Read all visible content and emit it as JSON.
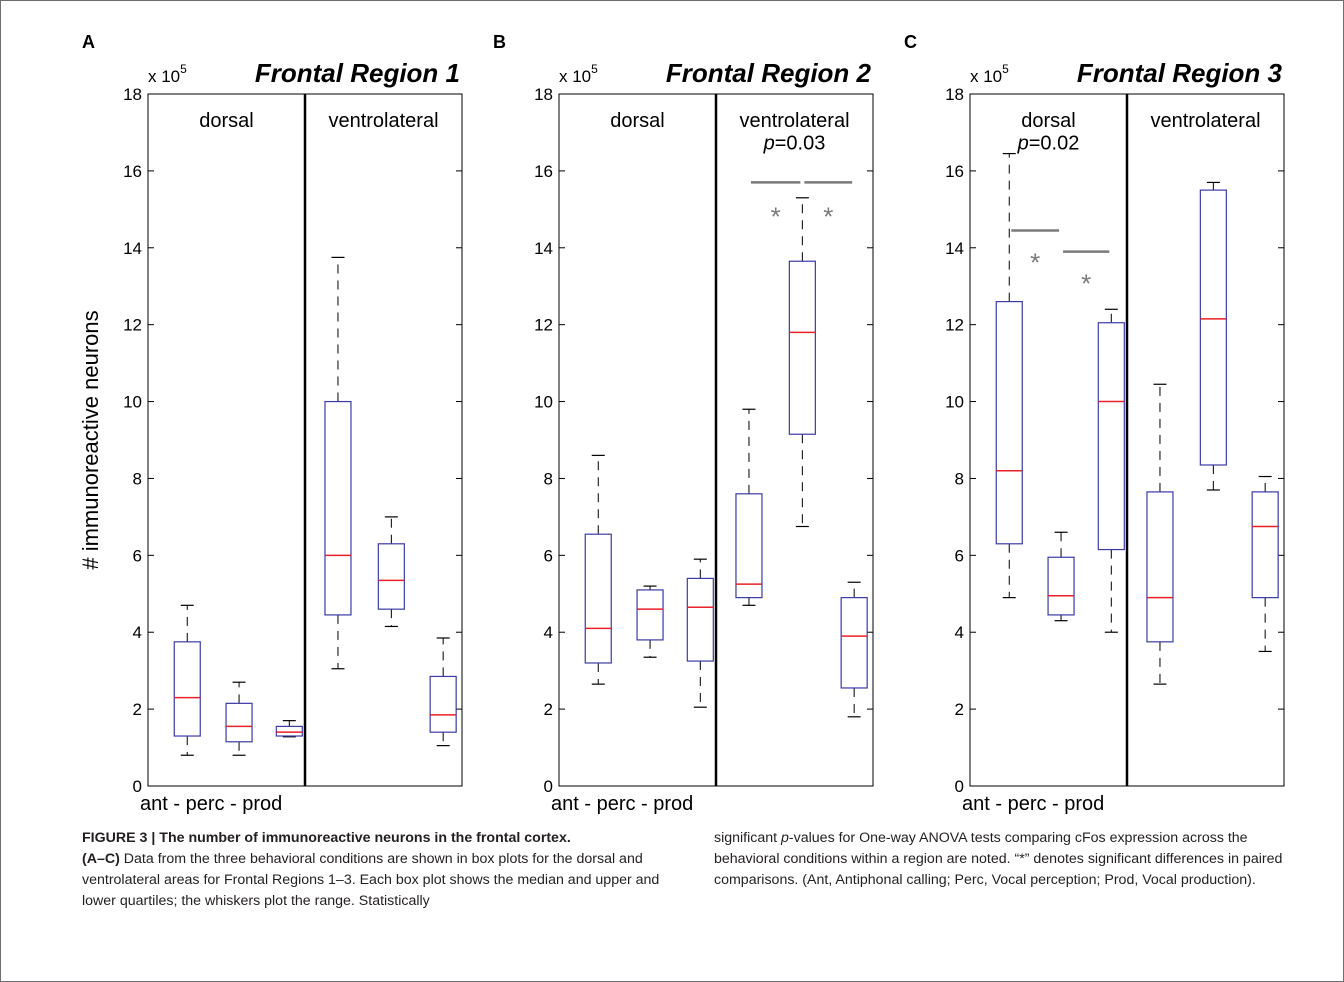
{
  "caption": {
    "heading": "FIGURE 3 | The number of immunoreactive neurons in the frontal cortex.",
    "range": "(A–C)",
    "col1_text": "Data from the three behavioral conditions are shown in box plots for the dorsal and ventrolateral areas for Frontal Regions 1–3. Each box plot shows the median and upper and lower quartiles; the whiskers plot the range. Statistically",
    "col2_pre": "significant ",
    "col2_p": "p",
    "col2_post": "-values for One-way ANOVA tests comparing cFos expression across the behavioral conditions within a region are noted. “*” denotes significant differences in paired comparisons. (Ant, Antiphonal calling; Perc, Vocal perception; Prod, Vocal production)."
  },
  "chart_data": [
    {
      "type": "box",
      "panel_label": "A",
      "title": "Frontal Region 1",
      "scale_label": "x 10",
      "scale_exponent": "5",
      "ylabel": "# immunoreactive neurons",
      "xlabel": "ant - perc - prod",
      "ylim": [
        0,
        18
      ],
      "yticks": [
        0,
        2,
        4,
        6,
        8,
        10,
        12,
        14,
        16,
        18
      ],
      "sections": [
        "dorsal",
        "ventrolateral"
      ],
      "colors": {
        "box": "#3a3aa8",
        "median": "#e8202a",
        "whisker": "#000000",
        "annotation": "#7a7a7a"
      },
      "boxes": [
        {
          "section": "dorsal",
          "min": 0.8,
          "q1": 1.3,
          "median": 2.3,
          "q3": 3.75,
          "max": 4.7
        },
        {
          "section": "dorsal",
          "min": 0.8,
          "q1": 1.15,
          "median": 1.55,
          "q3": 2.15,
          "max": 2.7
        },
        {
          "section": "dorsal",
          "min": 1.28,
          "q1": 1.3,
          "median": 1.4,
          "q3": 1.55,
          "max": 1.7
        },
        {
          "section": "ventrolateral",
          "min": 3.05,
          "q1": 4.45,
          "median": 6.0,
          "q3": 10.0,
          "max": 13.75
        },
        {
          "section": "ventrolateral",
          "min": 4.15,
          "q1": 4.6,
          "median": 5.35,
          "q3": 6.3,
          "max": 7.0
        },
        {
          "section": "ventrolateral",
          "min": 1.05,
          "q1": 1.4,
          "median": 1.85,
          "q3": 2.85,
          "max": 3.85
        }
      ],
      "annotations": []
    },
    {
      "type": "box",
      "panel_label": "B",
      "title": "Frontal Region 2",
      "scale_label": "x 10",
      "scale_exponent": "5",
      "ylabel": "",
      "xlabel": "ant - perc - prod",
      "ylim": [
        0,
        18
      ],
      "yticks": [
        0,
        2,
        4,
        6,
        8,
        10,
        12,
        14,
        16,
        18
      ],
      "sections": [
        "dorsal",
        "ventrolateral"
      ],
      "colors": {
        "box": "#3a3aa8",
        "median": "#e8202a",
        "whisker": "#000000",
        "annotation": "#7a7a7a"
      },
      "boxes": [
        {
          "section": "dorsal",
          "min": 2.65,
          "q1": 3.2,
          "median": 4.1,
          "q3": 6.55,
          "max": 8.6
        },
        {
          "section": "dorsal",
          "min": 3.35,
          "q1": 3.8,
          "median": 4.6,
          "q3": 5.1,
          "max": 5.2
        },
        {
          "section": "dorsal",
          "min": 2.05,
          "q1": 3.25,
          "median": 4.65,
          "q3": 5.4,
          "max": 5.9
        },
        {
          "section": "ventrolateral",
          "min": 4.7,
          "q1": 4.9,
          "median": 5.25,
          "q3": 7.6,
          "max": 9.8
        },
        {
          "section": "ventrolateral",
          "min": 6.75,
          "q1": 9.15,
          "median": 11.8,
          "q3": 13.65,
          "max": 15.3
        },
        {
          "section": "ventrolateral",
          "min": 1.8,
          "q1": 2.55,
          "median": 3.9,
          "q3": 4.9,
          "max": 5.3
        }
      ],
      "annotations": [
        {
          "kind": "p_value",
          "prefix": "p",
          "value": "=0.03",
          "section": "ventrolateral",
          "y": 16.55
        },
        {
          "kind": "sig_bar",
          "from_box": 3,
          "to_box": 4,
          "y": 15.7,
          "star": "*",
          "star_y": 14.95
        },
        {
          "kind": "sig_bar",
          "from_box": 4,
          "to_box": 5,
          "y": 15.7,
          "star": "*",
          "star_y": 14.95
        }
      ]
    },
    {
      "type": "box",
      "panel_label": "C",
      "title": "Frontal Region 3",
      "scale_label": "x 10",
      "scale_exponent": "5",
      "ylabel": "",
      "xlabel": "ant - perc - prod",
      "ylim": [
        0,
        18
      ],
      "yticks": [
        0,
        2,
        4,
        6,
        8,
        10,
        12,
        14,
        16,
        18
      ],
      "sections": [
        "dorsal",
        "ventrolateral"
      ],
      "colors": {
        "box": "#3a3aa8",
        "median": "#e8202a",
        "whisker": "#000000",
        "annotation": "#7a7a7a"
      },
      "boxes": [
        {
          "section": "dorsal",
          "min": 4.9,
          "q1": 6.3,
          "median": 8.2,
          "q3": 12.6,
          "max": 16.45
        },
        {
          "section": "dorsal",
          "min": 4.3,
          "q1": 4.45,
          "median": 4.95,
          "q3": 5.95,
          "max": 6.6
        },
        {
          "section": "dorsal",
          "min": 4.0,
          "q1": 6.15,
          "median": 10.0,
          "q3": 12.05,
          "max": 12.4
        },
        {
          "section": "ventrolateral",
          "min": 2.65,
          "q1": 3.75,
          "median": 4.9,
          "q3": 7.65,
          "max": 10.45
        },
        {
          "section": "ventrolateral",
          "min": 7.7,
          "q1": 8.35,
          "median": 12.15,
          "q3": 15.5,
          "max": 15.7
        },
        {
          "section": "ventrolateral",
          "min": 3.5,
          "q1": 4.9,
          "median": 6.75,
          "q3": 7.65,
          "max": 8.05
        }
      ],
      "annotations": [
        {
          "kind": "p_value",
          "prefix": "p",
          "value": "=0.02",
          "section": "dorsal",
          "y": 16.55
        },
        {
          "kind": "sig_bar",
          "from_box": 0,
          "to_box": 1,
          "y": 14.45,
          "star": "*",
          "star_y": 13.75
        },
        {
          "kind": "sig_bar",
          "from_box": 1,
          "to_box": 2,
          "y": 13.9,
          "star": "*",
          "star_y": 13.2
        }
      ]
    }
  ]
}
